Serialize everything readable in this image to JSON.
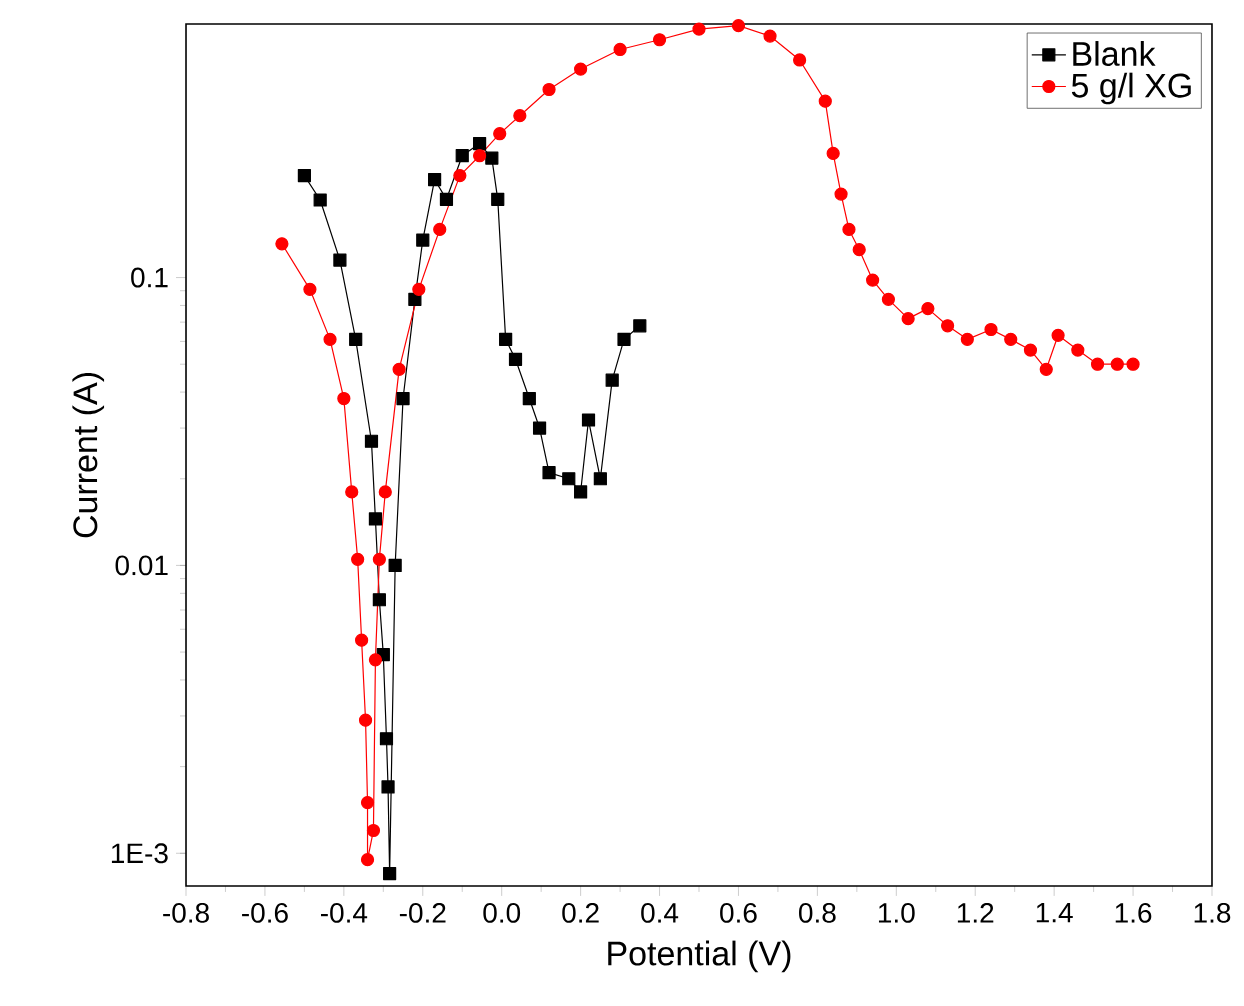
{
  "chart_data": {
    "type": "line",
    "xlabel": "Potential (V)",
    "ylabel": "Current (A)",
    "log": "y",
    "xlim": [
      -0.8,
      1.8
    ],
    "ylim": [
      0.00077,
      0.76
    ],
    "xticks": [
      -0.8,
      -0.6,
      -0.4,
      -0.2,
      {
        "value": 0,
        "label": "0.0"
      },
      0.2,
      0.4,
      0.6,
      0.8,
      {
        "value": 1,
        "label": "1.0"
      },
      1.2,
      1.4,
      1.6,
      1.8
    ],
    "yticks": [
      {
        "value": 0.001,
        "label": "1E-3"
      },
      0.01,
      0.1
    ],
    "legend": "top right",
    "grid": false,
    "line_style": "solid",
    "series": [
      {
        "name": "Blank",
        "color": "#000000",
        "marker": "square",
        "x": [
          -0.5,
          -0.46,
          -0.41,
          -0.37,
          -0.33,
          -0.32,
          -0.31,
          -0.3,
          -0.292,
          -0.288,
          -0.284,
          -0.27,
          -0.25,
          -0.22,
          -0.2,
          -0.17,
          -0.14,
          -0.1,
          -0.056,
          -0.025,
          -0.01,
          0.01,
          0.035,
          0.07,
          0.096,
          0.12,
          0.17,
          0.2,
          0.22,
          0.25,
          0.28,
          0.31,
          0.35
        ],
        "values": [
          0.226,
          0.186,
          0.115,
          0.061,
          0.027,
          0.0145,
          0.0076,
          0.0049,
          0.0025,
          0.0017,
          0.00085,
          0.01,
          0.038,
          0.084,
          0.135,
          0.219,
          0.187,
          0.265,
          0.292,
          0.26,
          0.187,
          0.061,
          0.052,
          0.038,
          0.03,
          0.021,
          0.02,
          0.018,
          0.032,
          0.02,
          0.044,
          0.061,
          0.068
        ]
      },
      {
        "name": "5 g/l XG",
        "color": "#ff0000",
        "marker": "circle",
        "x": [
          -0.557,
          -0.486,
          -0.435,
          -0.4,
          -0.38,
          -0.365,
          -0.355,
          -0.345,
          -0.34,
          -0.34,
          -0.325,
          -0.32,
          -0.31,
          -0.295,
          -0.26,
          -0.21,
          -0.157,
          -0.106,
          -0.056,
          -0.005,
          0.046,
          0.12,
          0.2,
          0.3,
          0.4,
          0.5,
          0.6,
          0.68,
          0.755,
          0.82,
          0.84,
          0.86,
          0.88,
          0.906,
          0.94,
          0.98,
          1.03,
          1.08,
          1.13,
          1.18,
          1.24,
          1.29,
          1.34,
          1.38,
          1.41,
          1.46,
          1.51,
          1.56,
          1.6
        ],
        "values": [
          0.131,
          0.091,
          0.061,
          0.038,
          0.018,
          0.0105,
          0.0055,
          0.0029,
          0.0015,
          0.00095,
          0.0012,
          0.0047,
          0.0105,
          0.018,
          0.048,
          0.091,
          0.147,
          0.226,
          0.265,
          0.316,
          0.365,
          0.45,
          0.53,
          0.62,
          0.67,
          0.73,
          0.75,
          0.69,
          0.57,
          0.41,
          0.27,
          0.195,
          0.147,
          0.125,
          0.098,
          0.084,
          0.072,
          0.078,
          0.068,
          0.061,
          0.066,
          0.061,
          0.056,
          0.048,
          0.063,
          0.056,
          0.05,
          0.05,
          0.05
        ]
      }
    ]
  }
}
